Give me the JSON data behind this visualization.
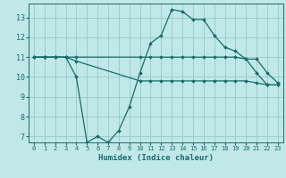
{
  "xlabel": "Humidex (Indice chaleur)",
  "bg_color": "#c0e8e8",
  "grid_color": "#98c8c8",
  "line_color": "#1a6b6b",
  "xlim": [
    -0.5,
    23.5
  ],
  "ylim": [
    6.7,
    13.7
  ],
  "yticks": [
    7,
    8,
    9,
    10,
    11,
    12,
    13
  ],
  "xticks": [
    0,
    1,
    2,
    3,
    4,
    5,
    6,
    7,
    8,
    9,
    10,
    11,
    12,
    13,
    14,
    15,
    16,
    17,
    18,
    19,
    20,
    21,
    22,
    23
  ],
  "curves": [
    {
      "x": [
        0,
        1,
        2,
        3,
        4,
        5,
        6,
        7,
        8,
        9,
        10,
        11,
        12,
        13,
        14,
        15,
        16,
        17,
        18,
        19,
        20,
        21,
        22,
        23
      ],
      "y": [
        11,
        11,
        11,
        11,
        10,
        6.7,
        7.0,
        6.7,
        7.3,
        8.5,
        10.2,
        11.7,
        12.1,
        13.4,
        13.3,
        12.9,
        12.9,
        12.1,
        11.5,
        11.3,
        10.9,
        10.2,
        9.6,
        9.6
      ]
    },
    {
      "x": [
        0,
        1,
        2,
        3,
        4,
        10,
        11,
        12,
        13,
        14,
        15,
        16,
        17,
        18,
        19,
        20,
        21,
        22,
        23
      ],
      "y": [
        11,
        11,
        11,
        11,
        11,
        11,
        11,
        11,
        11,
        11,
        11,
        11,
        11,
        11,
        11,
        10.9,
        10.9,
        10.2,
        9.7
      ]
    },
    {
      "x": [
        0,
        1,
        2,
        3,
        4,
        10,
        11,
        12,
        13,
        14,
        15,
        16,
        17,
        18,
        19,
        20,
        21,
        22,
        23
      ],
      "y": [
        11,
        11,
        11,
        11,
        10.8,
        9.8,
        9.8,
        9.8,
        9.8,
        9.8,
        9.8,
        9.8,
        9.8,
        9.8,
        9.8,
        9.8,
        9.7,
        9.6,
        9.6
      ]
    }
  ]
}
